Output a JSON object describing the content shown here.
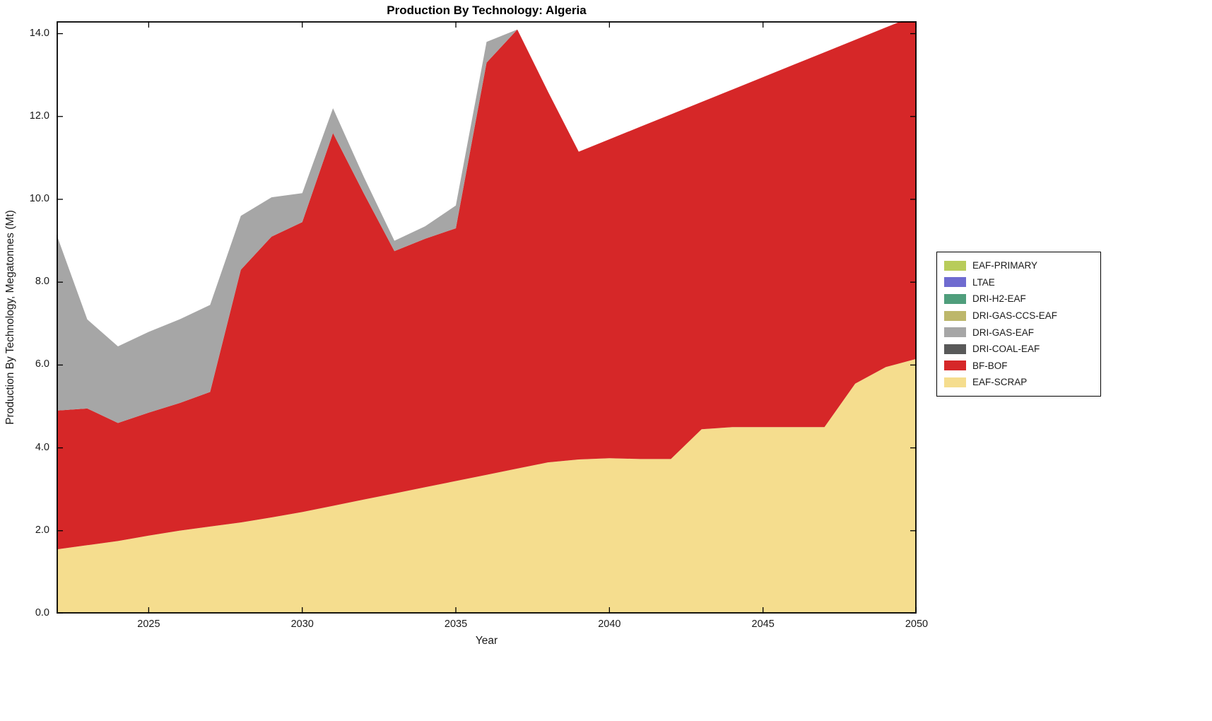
{
  "chart_data": {
    "type": "area",
    "stacked": true,
    "title": "Production By Technology: Algeria",
    "xlabel": "Year",
    "ylabel": "Production By Technology, Megatonnes (Mt)",
    "xlim": [
      2022,
      2050
    ],
    "ylim": [
      0,
      14.3
    ],
    "grid": false,
    "xticks": [
      2025,
      2030,
      2035,
      2040,
      2045,
      2050
    ],
    "xtick_labels": [
      "2025",
      "2030",
      "2035",
      "2040",
      "2045",
      "2050"
    ],
    "yticks": [
      0,
      2,
      4,
      6,
      8,
      10,
      12,
      14
    ],
    "ytick_labels": [
      "0.0",
      "2.0",
      "4.0",
      "6.0",
      "8.0",
      "10.0",
      "12.0",
      "14.0"
    ],
    "x": [
      2022,
      2023,
      2024,
      2025,
      2026,
      2027,
      2028,
      2029,
      2030,
      2031,
      2032,
      2033,
      2034,
      2035,
      2036,
      2037,
      2038,
      2039,
      2040,
      2041,
      2042,
      2043,
      2044,
      2045,
      2046,
      2047,
      2048,
      2049,
      2050
    ],
    "series": [
      {
        "name": "EAF-SCRAP",
        "color": "#f5dd8e",
        "values": [
          1.55,
          1.65,
          1.75,
          1.88,
          2.0,
          2.1,
          2.2,
          2.32,
          2.45,
          2.6,
          2.75,
          2.9,
          3.05,
          3.2,
          3.35,
          3.5,
          3.65,
          3.72,
          3.75,
          3.73,
          3.73,
          4.45,
          4.5,
          4.5,
          4.5,
          4.5,
          5.55,
          5.95,
          6.15
        ]
      },
      {
        "name": "BF-BOF",
        "color": "#d62728",
        "values": [
          3.35,
          3.3,
          2.85,
          2.97,
          3.08,
          3.25,
          6.1,
          6.78,
          7.0,
          9.0,
          7.4,
          5.85,
          6.0,
          6.1,
          9.95,
          10.6,
          8.95,
          7.43,
          7.7,
          8.02,
          8.32,
          7.9,
          8.15,
          8.45,
          8.75,
          9.05,
          8.3,
          8.2,
          8.3
        ]
      },
      {
        "name": "DRI-COAL-EAF",
        "color": "#595959",
        "values": [
          0,
          0,
          0,
          0,
          0,
          0,
          0,
          0,
          0,
          0,
          0,
          0,
          0,
          0,
          0,
          0,
          0,
          0,
          0,
          0,
          0,
          0,
          0,
          0,
          0,
          0,
          0,
          0,
          0
        ]
      },
      {
        "name": "DRI-GAS-EAF",
        "color": "#a6a6a6",
        "values": [
          4.25,
          2.15,
          1.85,
          1.95,
          2.02,
          2.1,
          1.3,
          0.95,
          0.7,
          0.6,
          0.4,
          0.25,
          0.3,
          0.55,
          0.5,
          0,
          0,
          0,
          0,
          0,
          0,
          0,
          0,
          0,
          0,
          0,
          0,
          0,
          0
        ]
      },
      {
        "name": "DRI-GAS-CCS-EAF",
        "color": "#bdb76b",
        "values": [
          0,
          0,
          0,
          0,
          0,
          0,
          0,
          0,
          0,
          0,
          0,
          0,
          0,
          0,
          0,
          0,
          0,
          0,
          0,
          0,
          0,
          0,
          0,
          0,
          0,
          0,
          0,
          0,
          0
        ]
      },
      {
        "name": "DRI-H2-EAF",
        "color": "#4f9e7c",
        "values": [
          0,
          0,
          0,
          0,
          0,
          0,
          0,
          0,
          0,
          0,
          0,
          0,
          0,
          0,
          0,
          0,
          0,
          0,
          0,
          0,
          0,
          0,
          0,
          0,
          0,
          0,
          0,
          0,
          0
        ]
      },
      {
        "name": "LTAE",
        "color": "#6f6bd0",
        "values": [
          0,
          0,
          0,
          0,
          0,
          0,
          0,
          0,
          0,
          0,
          0,
          0,
          0,
          0,
          0,
          0,
          0,
          0,
          0,
          0,
          0,
          0,
          0,
          0,
          0,
          0,
          0,
          0,
          0
        ]
      },
      {
        "name": "EAF-PRIMARY",
        "color": "#b8cc5a",
        "values": [
          0,
          0,
          0,
          0,
          0,
          0,
          0,
          0,
          0,
          0,
          0,
          0,
          0,
          0,
          0,
          0,
          0,
          0,
          0,
          0,
          0,
          0,
          0,
          0,
          0,
          0,
          0,
          0,
          0
        ]
      }
    ],
    "legend": {
      "position": "right",
      "entries": [
        {
          "label": "EAF-PRIMARY",
          "color": "#b8cc5a"
        },
        {
          "label": "LTAE",
          "color": "#6f6bd0"
        },
        {
          "label": "DRI-H2-EAF",
          "color": "#4f9e7c"
        },
        {
          "label": "DRI-GAS-CCS-EAF",
          "color": "#bdb76b"
        },
        {
          "label": "DRI-GAS-EAF",
          "color": "#a6a6a6"
        },
        {
          "label": "DRI-COAL-EAF",
          "color": "#595959"
        },
        {
          "label": "BF-BOF",
          "color": "#d62728"
        },
        {
          "label": "EAF-SCRAP",
          "color": "#f5dd8e"
        }
      ]
    }
  }
}
